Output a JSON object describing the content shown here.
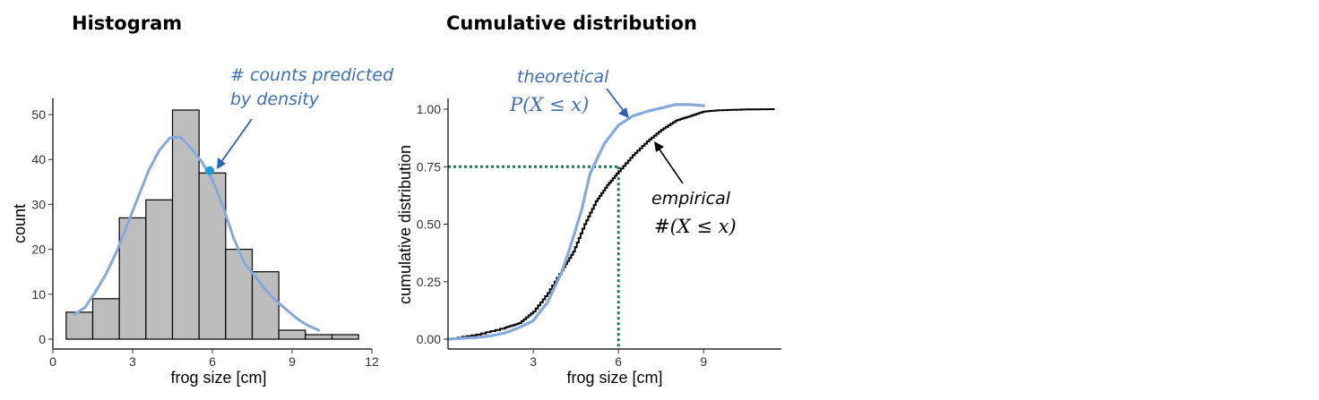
{
  "chart_data": [
    {
      "type": "bar",
      "title": "Histogram",
      "xlabel": "frog size [cm]",
      "ylabel": "count",
      "xlim": [
        0,
        12
      ],
      "ylim": [
        0,
        52
      ],
      "xticks": [
        "0",
        "3",
        "6",
        "9",
        "12"
      ],
      "yticks": [
        "0",
        "10",
        "20",
        "30",
        "40",
        "50"
      ],
      "bin_edges": [
        0.5,
        1.5,
        2.5,
        3.5,
        4.5,
        5.5,
        6.5,
        7.5,
        8.5,
        9.5,
        10.5,
        11.5
      ],
      "values": [
        6,
        9,
        27,
        31,
        51,
        37,
        20,
        15,
        2,
        1,
        1
      ],
      "density_curve": {
        "x": [
          0.8,
          1.2,
          1.6,
          2.0,
          2.4,
          2.8,
          3.2,
          3.6,
          4.0,
          4.4,
          4.8,
          5.2,
          5.6,
          6.0,
          6.4,
          6.8,
          7.2,
          7.6,
          8.0,
          8.4,
          8.8,
          9.2,
          9.6,
          10.0
        ],
        "y": [
          5.5,
          7.0,
          10.5,
          14.5,
          19.5,
          25.5,
          31.5,
          37.5,
          42.0,
          44.8,
          45.0,
          42.5,
          39.5,
          35.5,
          29.5,
          22.5,
          17.0,
          14.0,
          11.0,
          8.5,
          6.5,
          4.5,
          3.0,
          2.0
        ]
      },
      "highlight_point": {
        "x": 5.9,
        "y": 37.5
      },
      "annotation": {
        "line1": "# counts predicted",
        "line2": "by density"
      }
    },
    {
      "type": "line",
      "title": "Cumulative distribution",
      "xlabel": "frog size [cm]",
      "ylabel": "cumulative distribution",
      "xlim": [
        0,
        11.5
      ],
      "ylim": [
        0,
        1.04
      ],
      "xticks": [
        "3",
        "6",
        "9"
      ],
      "yticks": [
        "0.00",
        "0.25",
        "0.50",
        "0.75",
        "1.00"
      ],
      "reference": {
        "x": 6,
        "y": 0.75
      },
      "series": [
        {
          "values": [
            [
              0,
              0
            ],
            [
              1.0,
              0.02
            ],
            [
              2.0,
              0.05
            ],
            [
              2.5,
              0.07
            ],
            [
              3.0,
              0.12
            ],
            [
              3.5,
              0.2
            ],
            [
              4.0,
              0.3
            ],
            [
              4.4,
              0.38
            ],
            [
              4.8,
              0.5
            ],
            [
              5.2,
              0.6
            ],
            [
              5.6,
              0.67
            ],
            [
              6.0,
              0.73
            ],
            [
              6.5,
              0.8
            ],
            [
              7.0,
              0.86
            ],
            [
              7.5,
              0.91
            ],
            [
              8.0,
              0.95
            ],
            [
              8.5,
              0.97
            ],
            [
              9.0,
              0.99
            ],
            [
              9.5,
              0.995
            ],
            [
              10.5,
              0.999
            ],
            [
              11.5,
              1.0
            ]
          ]
        },
        {
          "values": [
            [
              0,
              0.0
            ],
            [
              0.5,
              0.004
            ],
            [
              1.0,
              0.007
            ],
            [
              1.5,
              0.014
            ],
            [
              2.0,
              0.027
            ],
            [
              2.5,
              0.05
            ],
            [
              3.0,
              0.08
            ],
            [
              3.5,
              0.16
            ],
            [
              4.0,
              0.29
            ],
            [
              4.3,
              0.4
            ],
            [
              4.7,
              0.56
            ],
            [
              5.0,
              0.72
            ],
            [
              5.5,
              0.85
            ],
            [
              6.0,
              0.93
            ],
            [
              6.5,
              0.97
            ],
            [
              7.0,
              0.99
            ],
            [
              7.5,
              1.005
            ],
            [
              8.0,
              1.02
            ],
            [
              8.5,
              1.02
            ],
            [
              9.0,
              1.015
            ]
          ]
        }
      ],
      "annotations": {
        "theoretical_label": "theoretical",
        "theoretical_math": "P(X ≤ x)",
        "empirical_label": "empirical",
        "empirical_math": "#(X ≤ x)"
      }
    }
  ]
}
